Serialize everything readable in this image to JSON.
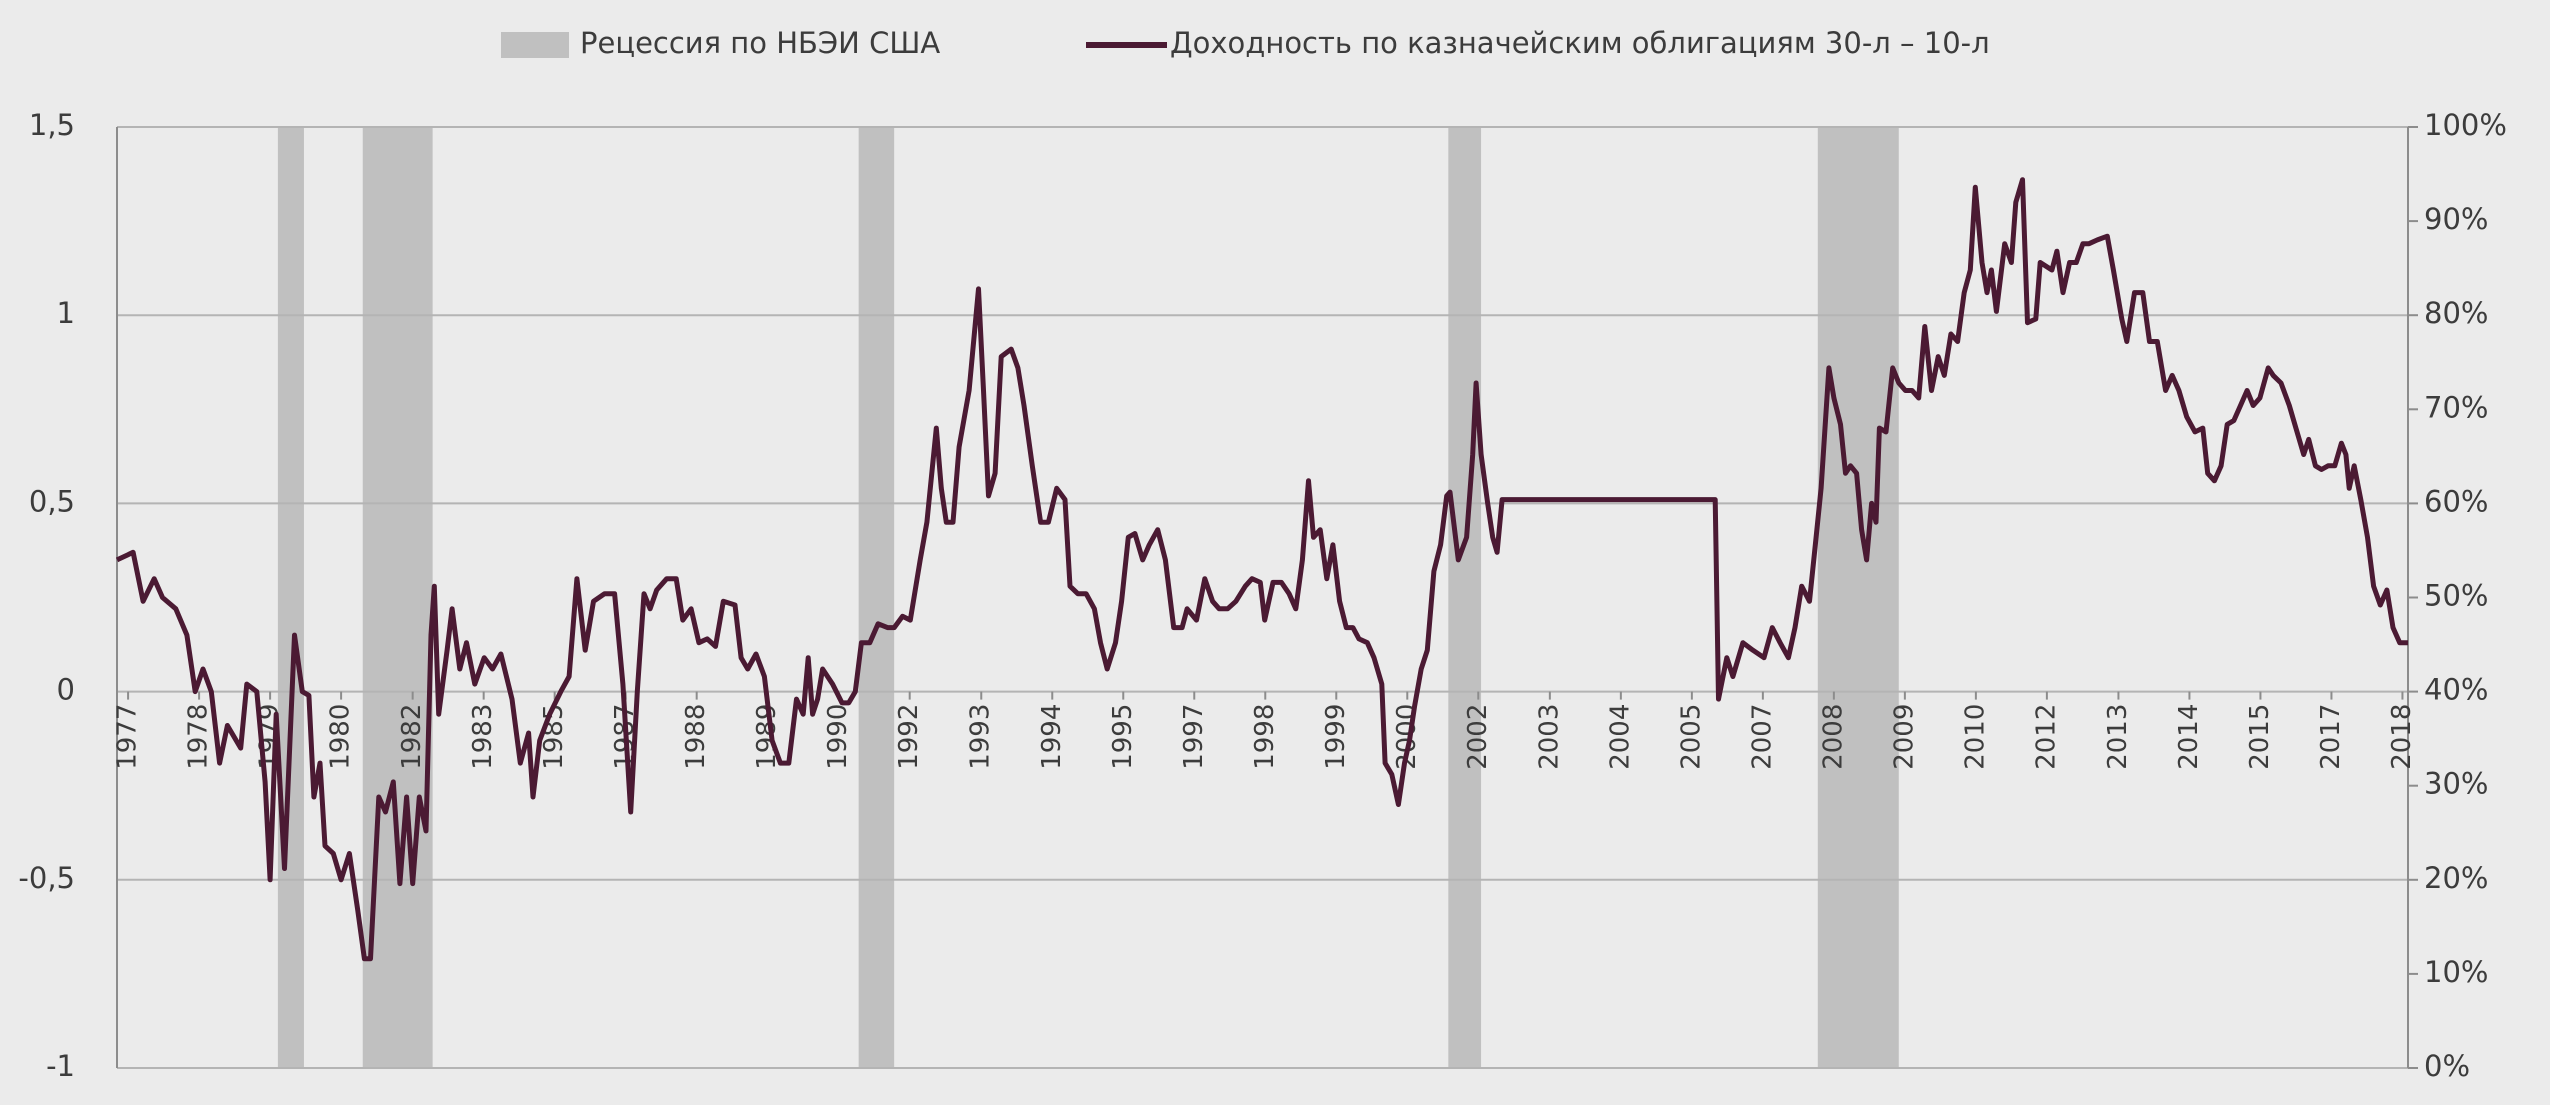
{
  "chart_data": {
    "type": "line",
    "series": [
      {
        "name": "Рецессия по НБЭИ США",
        "type": "bar",
        "axis": "y2",
        "color": "#c0c0c0",
        "spans": [
          [
            1979.7,
            1980.17
          ],
          [
            1981.23,
            1982.49
          ],
          [
            1990.17,
            1990.81
          ],
          [
            2000.8,
            2001.39
          ],
          [
            2007.46,
            2008.92
          ]
        ],
        "values": [
          100,
          100,
          100,
          100,
          100
        ]
      },
      {
        "name": "Доходность по казначейским  облигациям 30-л – 10-л",
        "type": "line",
        "color": "#4b1a33",
        "x": [
          1976.8,
          1977.09,
          1977.27,
          1977.47,
          1977.62,
          1977.86,
          1978.06,
          1978.21,
          1978.35,
          1978.5,
          1978.65,
          1978.79,
          1979.03,
          1979.14,
          1979.32,
          1979.47,
          1979.56,
          1979.67,
          1979.82,
          1980.0,
          1980.14,
          1980.26,
          1980.35,
          1980.46,
          1980.55,
          1980.7,
          1980.84,
          1980.99,
          1981.14,
          1981.26,
          1981.37,
          1981.52,
          1981.64,
          1981.78,
          1981.9,
          1982.02,
          1982.13,
          1982.25,
          1982.37,
          1982.46,
          1982.52,
          1982.6,
          1982.75,
          1982.84,
          1982.98,
          1983.1,
          1983.25,
          1983.42,
          1983.57,
          1983.72,
          1983.92,
          1984.07,
          1984.22,
          1984.3,
          1984.42,
          1984.6,
          1984.8,
          1984.95,
          1985.09,
          1985.24,
          1985.39,
          1985.59,
          1985.77,
          1985.92,
          1986.06,
          1986.18,
          1986.3,
          1986.41,
          1986.53,
          1986.71,
          1986.88,
          1987.0,
          1987.15,
          1987.29,
          1987.44,
          1987.59,
          1987.73,
          1987.94,
          1988.05,
          1988.17,
          1988.32,
          1988.47,
          1988.61,
          1988.76,
          1988.91,
          1989.05,
          1989.17,
          1989.26,
          1989.34,
          1989.43,
          1989.52,
          1989.7,
          1989.87,
          1989.99,
          1990.11,
          1990.22,
          1990.37,
          1990.52,
          1990.69,
          1990.81,
          1990.96,
          1991.1,
          1991.28,
          1991.4,
          1991.57,
          1991.66,
          1991.75,
          1991.87,
          1991.98,
          1992.16,
          1992.33,
          1992.42,
          1992.51,
          1992.63,
          1992.74,
          1992.92,
          1993.04,
          1993.15,
          1993.3,
          1993.45,
          1993.59,
          1993.74,
          1993.89,
          1993.98,
          1994.12,
          1994.27,
          1994.42,
          1994.53,
          1994.65,
          1994.8,
          1994.91,
          1995.03,
          1995.15,
          1995.29,
          1995.41,
          1995.56,
          1995.7,
          1995.85,
          1996.0,
          1996.09,
          1996.26,
          1996.41,
          1996.55,
          1996.67,
          1996.82,
          1996.97,
          1997.14,
          1997.26,
          1997.41,
          1997.49,
          1997.64,
          1997.79,
          1997.93,
          1998.05,
          1998.17,
          1998.28,
          1998.37,
          1998.49,
          1998.61,
          1998.72,
          1998.84,
          1998.96,
          1999.08,
          1999.19,
          1999.34,
          1999.46,
          1999.6,
          1999.66,
          1999.78,
          1999.9,
          2000.01,
          2000.1,
          2000.19,
          2000.31,
          2000.42,
          2000.54,
          2000.66,
          2000.77,
          2000.83,
          2000.98,
          2001.13,
          2001.24,
          2001.3,
          2001.39,
          2001.51,
          2001.6,
          2001.68,
          2001.77,
          2005.61,
          2005.67,
          2005.82,
          2005.93,
          2006.11,
          2006.29,
          2006.49,
          2006.64,
          2006.78,
          2006.93,
          2007.05,
          2007.17,
          2007.31,
          2007.43,
          2007.52,
          2007.66,
          2007.75,
          2007.87,
          2007.96,
          2008.05,
          2008.16,
          2008.25,
          2008.34,
          2008.43,
          2008.51,
          2008.57,
          2008.69,
          2008.81,
          2008.92,
          2009.04,
          2009.16,
          2009.28,
          2009.39,
          2009.51,
          2009.63,
          2009.74,
          2009.86,
          2009.98,
          2010.1,
          2010.21,
          2010.3,
          2010.42,
          2010.51,
          2010.59,
          2010.68,
          2010.83,
          2010.95,
          2011.03,
          2011.15,
          2011.24,
          2011.39,
          2011.47,
          2011.68,
          2011.77,
          2011.88,
          2012.0,
          2012.12,
          2012.24,
          2012.35,
          2012.5,
          2012.68,
          2012.79,
          2012.94,
          2013.03,
          2013.17,
          2013.32,
          2013.44,
          2013.58,
          2013.73,
          2013.85,
          2013.97,
          2014.11,
          2014.26,
          2014.4,
          2014.49,
          2014.61,
          2014.73,
          2014.84,
          2014.96,
          2015.08,
          2015.2,
          2015.31,
          2015.43,
          2015.58,
          2015.67,
          2015.81,
          2015.96,
          2016.08,
          2016.22,
          2016.31,
          2016.43,
          2016.54,
          2016.66,
          2016.78,
          2016.9,
          2016.98,
          2017.04,
          2017.13,
          2017.25,
          2017.37,
          2017.48,
          2017.6,
          2017.72,
          2017.83,
          2017.95,
          2018.1
        ],
        "values": [
          0.35,
          0.37,
          0.24,
          0.3,
          0.25,
          0.22,
          0.15,
          0.0,
          0.06,
          0.0,
          -0.19,
          -0.09,
          -0.15,
          0.02,
          0.0,
          -0.24,
          -0.5,
          -0.06,
          -0.47,
          0.15,
          0.0,
          -0.01,
          -0.28,
          -0.19,
          -0.41,
          -0.43,
          -0.5,
          -0.43,
          -0.58,
          -0.71,
          -0.71,
          -0.28,
          -0.32,
          -0.24,
          -0.51,
          -0.28,
          -0.51,
          -0.28,
          -0.37,
          0.15,
          0.28,
          -0.06,
          0.11,
          0.22,
          0.06,
          0.13,
          0.02,
          0.09,
          0.06,
          0.1,
          -0.02,
          -0.19,
          -0.11,
          -0.28,
          -0.13,
          -0.06,
          0.0,
          0.04,
          0.3,
          0.11,
          0.24,
          0.26,
          0.26,
          0.02,
          -0.32,
          0.0,
          0.26,
          0.22,
          0.27,
          0.3,
          0.3,
          0.19,
          0.22,
          0.13,
          0.14,
          0.12,
          0.24,
          0.23,
          0.09,
          0.06,
          0.1,
          0.04,
          -0.13,
          -0.19,
          -0.19,
          -0.02,
          -0.06,
          0.09,
          -0.06,
          -0.02,
          0.06,
          0.02,
          -0.03,
          -0.03,
          0.0,
          0.13,
          0.13,
          0.18,
          0.17,
          0.17,
          0.2,
          0.19,
          0.35,
          0.45,
          0.7,
          0.54,
          0.45,
          0.45,
          0.65,
          0.8,
          1.07,
          0.8,
          0.52,
          0.58,
          0.89,
          0.91,
          0.86,
          0.76,
          0.6,
          0.45,
          0.45,
          0.54,
          0.51,
          0.28,
          0.26,
          0.26,
          0.22,
          0.13,
          0.06,
          0.13,
          0.24,
          0.41,
          0.42,
          0.35,
          0.39,
          0.43,
          0.35,
          0.17,
          0.17,
          0.22,
          0.19,
          0.3,
          0.24,
          0.22,
          0.22,
          0.24,
          0.28,
          0.3,
          0.29,
          0.19,
          0.29,
          0.29,
          0.26,
          0.22,
          0.35,
          0.56,
          0.41,
          0.43,
          0.3,
          0.39,
          0.24,
          0.17,
          0.17,
          0.14,
          0.13,
          0.09,
          0.02,
          -0.19,
          -0.22,
          -0.3,
          -0.19,
          -0.13,
          -0.04,
          0.06,
          0.11,
          0.32,
          0.39,
          0.52,
          0.53,
          0.35,
          0.41,
          0.63,
          0.82,
          0.63,
          0.5,
          0.41,
          0.37,
          0.51,
          0.51,
          -0.02,
          0.09,
          0.04,
          0.13,
          0.11,
          0.09,
          0.17,
          0.13,
          0.09,
          0.17,
          0.28,
          0.24,
          0.41,
          0.54,
          0.86,
          0.78,
          0.71,
          0.58,
          0.6,
          0.58,
          0.43,
          0.35,
          0.5,
          0.45,
          0.7,
          0.69,
          0.86,
          0.82,
          0.8,
          0.8,
          0.78,
          0.97,
          0.8,
          0.89,
          0.84,
          0.95,
          0.93,
          1.06,
          1.12,
          1.34,
          1.14,
          1.06,
          1.12,
          1.01,
          1.19,
          1.14,
          1.3,
          1.36,
          0.98,
          0.99,
          1.14,
          1.12,
          1.17,
          1.06,
          1.14,
          1.14,
          1.19,
          1.19,
          1.2,
          1.21,
          1.12,
          0.99,
          0.93,
          1.06,
          1.06,
          0.93,
          0.93,
          0.8,
          0.84,
          0.8,
          0.73,
          0.69,
          0.7,
          0.58,
          0.56,
          0.6,
          0.71,
          0.72,
          0.76,
          0.8,
          0.76,
          0.78,
          0.86,
          0.84,
          0.82,
          0.76,
          0.7,
          0.63,
          0.67,
          0.6,
          0.59,
          0.6,
          0.6,
          0.66,
          0.63,
          0.54,
          0.6,
          0.51,
          0.41,
          0.28,
          0.23,
          0.27,
          0.17,
          0.13,
          0.13
        ]
      }
    ],
    "xlim": [
      1976.8,
      2018.1
    ],
    "xticks": [
      {
        "value": 1977.0,
        "label": "1977"
      },
      {
        "value": 1978.28,
        "label": "1978"
      },
      {
        "value": 1979.56,
        "label": "1979"
      },
      {
        "value": 1980.84,
        "label": "1980"
      },
      {
        "value": 1982.13,
        "label": "1982"
      },
      {
        "value": 1983.41,
        "label": "1983"
      },
      {
        "value": 1984.69,
        "label": "1985"
      },
      {
        "value": 1985.97,
        "label": "1987"
      },
      {
        "value": 1987.25,
        "label": "1988"
      },
      {
        "value": 1988.53,
        "label": "1989"
      },
      {
        "value": 1989.81,
        "label": "1990"
      },
      {
        "value": 1991.09,
        "label": "1992"
      },
      {
        "value": 1992.38,
        "label": "1993"
      },
      {
        "value": 1993.66,
        "label": "1994"
      },
      {
        "value": 1994.94,
        "label": "1995"
      },
      {
        "value": 1996.22,
        "label": "1997"
      },
      {
        "value": 1997.5,
        "label": "1998"
      },
      {
        "value": 1998.78,
        "label": "1999"
      },
      {
        "value": 2000.06,
        "label": "2000"
      },
      {
        "value": 2001.34,
        "label": "2002"
      },
      {
        "value": 2002.63,
        "label": "2003"
      },
      {
        "value": 2003.91,
        "label": "2004"
      },
      {
        "value": 2005.19,
        "label": "2005"
      },
      {
        "value": 2006.47,
        "label": "2007"
      },
      {
        "value": 2007.75,
        "label": "2008"
      },
      {
        "value": 2009.03,
        "label": "2009"
      },
      {
        "value": 2010.31,
        "label": "2010"
      },
      {
        "value": 2011.59,
        "label": "2012"
      },
      {
        "value": 2012.88,
        "label": "2013"
      },
      {
        "value": 2014.16,
        "label": "2014"
      },
      {
        "value": 2015.44,
        "label": "2015"
      },
      {
        "value": 2016.72,
        "label": "2017"
      },
      {
        "value": 2018.0,
        "label": "2018"
      }
    ],
    "ylim": [
      -1,
      1.5
    ],
    "yticks": [
      -1,
      {
        "value": -0.5,
        "label": "-0,5"
      },
      0,
      {
        "value": 0.5,
        "label": "0,5"
      },
      1,
      {
        "value": 1.5,
        "label": "1,5"
      }
    ],
    "y2lim": [
      0,
      100
    ],
    "y2ticks": [
      {
        "value": 0,
        "label": "0%"
      },
      {
        "value": 10,
        "label": "10%"
      },
      {
        "value": 20,
        "label": "20%"
      },
      {
        "value": 30,
        "label": "30%"
      },
      {
        "value": 40,
        "label": "40%"
      },
      {
        "value": 50,
        "label": "50%"
      },
      {
        "value": 60,
        "label": "60%"
      },
      {
        "value": 70,
        "label": "70%"
      },
      {
        "value": 80,
        "label": "80%"
      },
      {
        "value": 90,
        "label": "90%"
      },
      {
        "value": 100,
        "label": "100%"
      }
    ],
    "grid": true,
    "legend": "top"
  }
}
